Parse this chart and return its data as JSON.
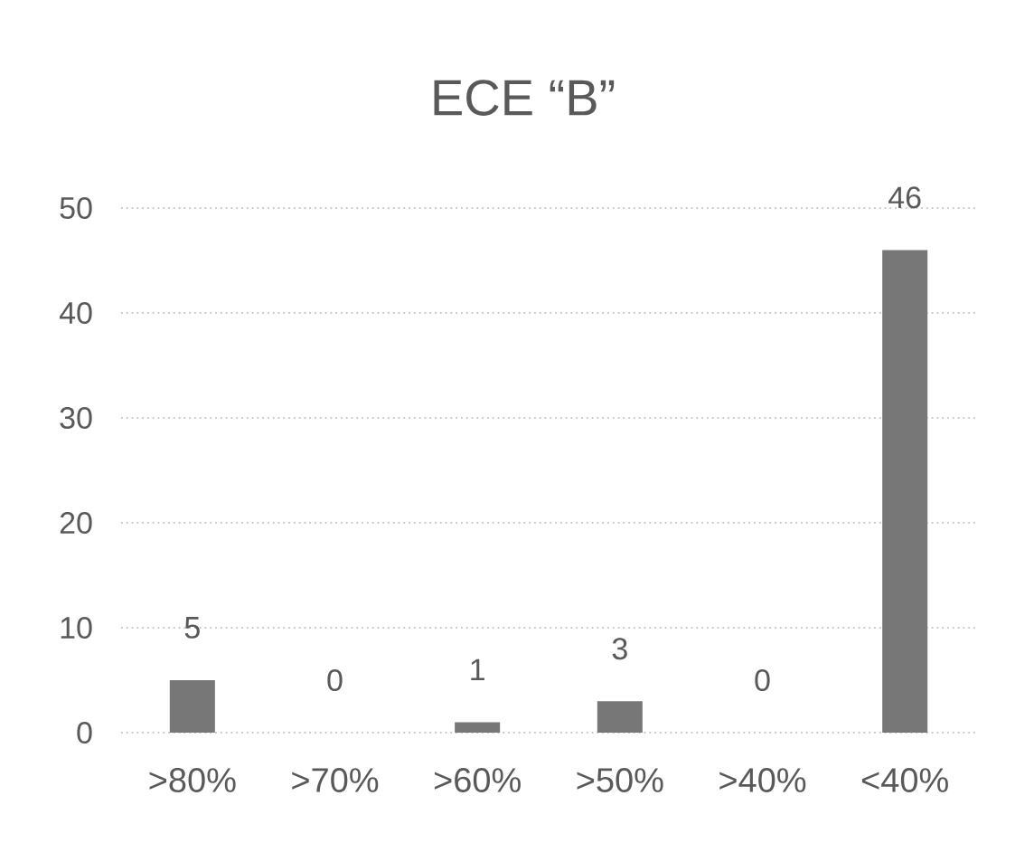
{
  "chart_data": {
    "type": "bar",
    "title": "ECE “B”",
    "categories": [
      ">80%",
      ">70%",
      ">60%",
      ">50%",
      ">40%",
      "<40%"
    ],
    "values": [
      5,
      0,
      1,
      3,
      0,
      46
    ],
    "color": "#777777",
    "ylim": [
      0,
      50
    ],
    "yticks": [
      0,
      10,
      20,
      30,
      40,
      50
    ],
    "grid": "y",
    "data_labels": true
  }
}
